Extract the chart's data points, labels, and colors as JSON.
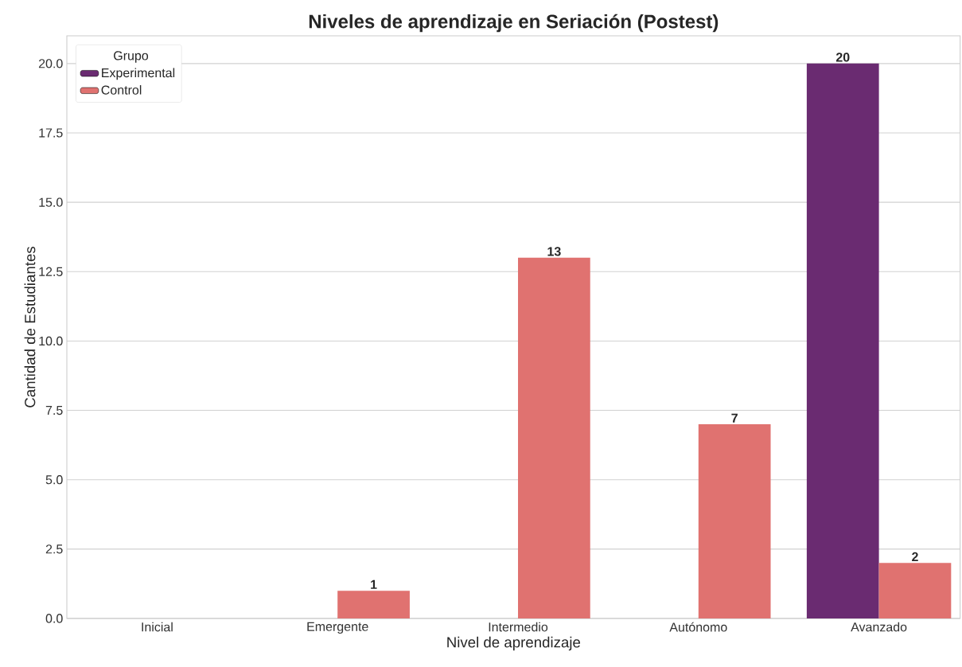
{
  "chart_data": {
    "type": "bar",
    "title": "Niveles de aprendizaje en Seriación (Postest)",
    "xlabel": "Nivel de aprendizaje",
    "ylabel": "Cantidad de Estudiantes",
    "legend_title": "Grupo",
    "categories": [
      "Inicial",
      "Emergente",
      "Intermedio",
      "Autónomo",
      "Avanzado"
    ],
    "series": [
      {
        "name": "Experimental",
        "color": "#6a2b71",
        "values": [
          0,
          0,
          0,
          0,
          20
        ],
        "value_labels": [
          null,
          null,
          null,
          null,
          "20"
        ]
      },
      {
        "name": "Control",
        "color": "#e07270",
        "values": [
          0,
          1,
          13,
          7,
          2
        ],
        "value_labels": [
          null,
          "1",
          "13",
          "7",
          "2"
        ]
      }
    ],
    "ylim": [
      0,
      21
    ],
    "yticks": [
      {
        "value": 0,
        "label": "0.0"
      },
      {
        "value": 2.5,
        "label": "2.5"
      },
      {
        "value": 5,
        "label": "5.0"
      },
      {
        "value": 7.5,
        "label": "7.5"
      },
      {
        "value": 10,
        "label": "10.0"
      },
      {
        "value": 12.5,
        "label": "12.5"
      },
      {
        "value": 15,
        "label": "15.0"
      },
      {
        "value": 17.5,
        "label": "17.5"
      },
      {
        "value": 20,
        "label": "20.0"
      }
    ],
    "grid": "y",
    "legend": "top left"
  }
}
